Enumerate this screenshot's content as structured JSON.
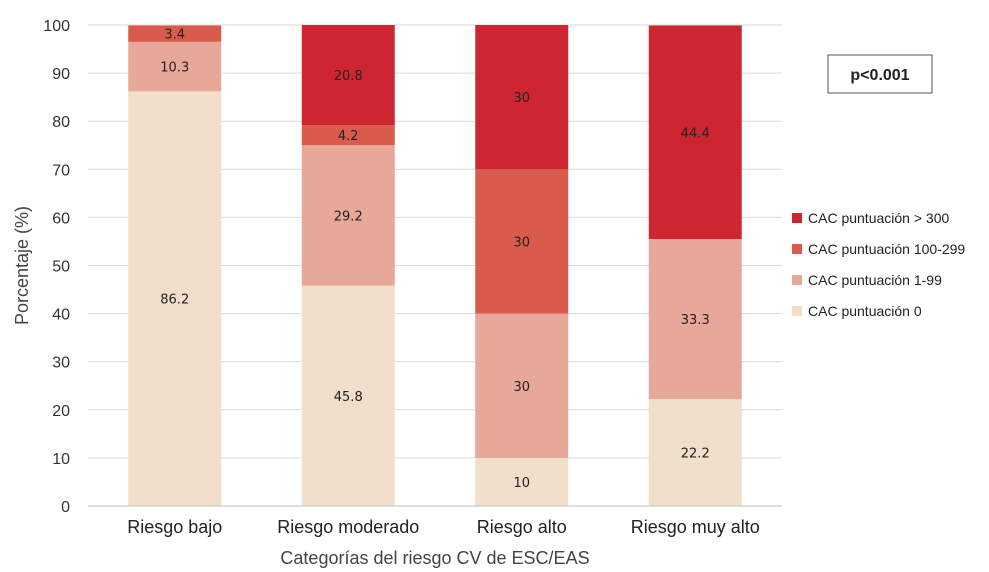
{
  "chart_data": {
    "type": "bar",
    "stacked": true,
    "categories": [
      "Riesgo bajo",
      "Riesgo moderado",
      "Riesgo alto",
      "Riesgo muy alto"
    ],
    "series": [
      {
        "name": "CAC puntuación 0",
        "values": [
          86.2,
          45.8,
          10,
          22.2
        ],
        "labels": [
          "86.2",
          "45.8",
          "10",
          "22.2"
        ],
        "color": "#F2DFCB"
      },
      {
        "name": "CAC puntuación 1-99",
        "values": [
          10.3,
          29.2,
          30,
          33.3
        ],
        "labels": [
          "10.3",
          "29.2",
          "30",
          "33.3"
        ],
        "color": "#E7A89A"
      },
      {
        "name": "CAC puntuación 100-299",
        "values": [
          3.4,
          4.2,
          30,
          0
        ],
        "labels": [
          "3.4",
          "4.2",
          "30",
          ""
        ],
        "color": "#D95B4C"
      },
      {
        "name": "CAC puntuación > 300",
        "values": [
          0,
          20.8,
          30,
          44.4
        ],
        "labels": [
          "",
          "20.8",
          "30",
          "44.4"
        ],
        "color": "#CE2631"
      }
    ],
    "legend_order": [
      "CAC puntuación > 300",
      "CAC puntuación 100-299",
      "CAC puntuación 1-99",
      "CAC puntuación 0"
    ],
    "xlabel": "Categorías del riesgo CV de ESC/EAS",
    "ylabel": "Porcentaje (%)",
    "ylim": [
      0,
      100
    ],
    "yticks": [
      0,
      10,
      20,
      30,
      40,
      50,
      60,
      70,
      80,
      90,
      100
    ],
    "grid": true,
    "legend_position": "right",
    "annotation": "p<0.001"
  }
}
